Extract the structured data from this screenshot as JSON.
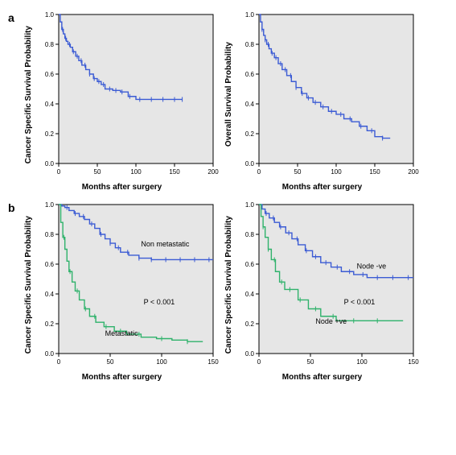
{
  "labels": {
    "row_a": "a",
    "row_b": "b",
    "xlab": "Months after surgery",
    "ylab_css": "Cancer Specific Survival Probability",
    "ylab_os": "Overall Survival Probability"
  },
  "style": {
    "plot_bg": "#e6e6e6",
    "axis_color": "#000000",
    "line_color_primary": "#3b5bd4",
    "line_color_secondary": "#2fb26b",
    "line_width": 1.4,
    "tick_fontsize": 8,
    "label_fontsize": 10,
    "row_label_fontsize": 14,
    "pvalue_fontsize": 9,
    "panel_border": "#000000"
  },
  "panels": {
    "a_left": {
      "ylab_key": "ylab_css",
      "xlim": [
        0,
        200
      ],
      "xtick_step": 50,
      "ylim": [
        0,
        1.0
      ],
      "ytick_step": 0.2,
      "series": [
        {
          "color_key": "line_color_primary",
          "points": [
            [
              0,
              1.0
            ],
            [
              2,
              0.95
            ],
            [
              4,
              0.9
            ],
            [
              6,
              0.87
            ],
            [
              8,
              0.84
            ],
            [
              10,
              0.82
            ],
            [
              12,
              0.8
            ],
            [
              15,
              0.78
            ],
            [
              18,
              0.75
            ],
            [
              22,
              0.72
            ],
            [
              26,
              0.69
            ],
            [
              30,
              0.66
            ],
            [
              35,
              0.63
            ],
            [
              40,
              0.6
            ],
            [
              45,
              0.57
            ],
            [
              50,
              0.55
            ],
            [
              55,
              0.53
            ],
            [
              60,
              0.5
            ],
            [
              70,
              0.49
            ],
            [
              80,
              0.48
            ],
            [
              90,
              0.45
            ],
            [
              100,
              0.43
            ],
            [
              110,
              0.43
            ],
            [
              125,
              0.43
            ],
            [
              140,
              0.43
            ],
            [
              155,
              0.43
            ],
            [
              160,
              0.43
            ]
          ],
          "censor_x": [
            5,
            9,
            14,
            19,
            24,
            29,
            34,
            40,
            46,
            52,
            58,
            66,
            74,
            82,
            92,
            105,
            120,
            135,
            150,
            160
          ]
        }
      ]
    },
    "a_right": {
      "ylab_key": "ylab_os",
      "xlim": [
        0,
        200
      ],
      "xtick_step": 50,
      "ylim": [
        0,
        1.0
      ],
      "ytick_step": 0.2,
      "series": [
        {
          "color_key": "line_color_primary",
          "points": [
            [
              0,
              1.0
            ],
            [
              2,
              0.95
            ],
            [
              4,
              0.9
            ],
            [
              6,
              0.86
            ],
            [
              8,
              0.83
            ],
            [
              10,
              0.8
            ],
            [
              13,
              0.77
            ],
            [
              16,
              0.74
            ],
            [
              20,
              0.71
            ],
            [
              25,
              0.67
            ],
            [
              30,
              0.63
            ],
            [
              36,
              0.59
            ],
            [
              42,
              0.55
            ],
            [
              48,
              0.51
            ],
            [
              55,
              0.47
            ],
            [
              62,
              0.44
            ],
            [
              70,
              0.41
            ],
            [
              80,
              0.38
            ],
            [
              90,
              0.35
            ],
            [
              100,
              0.33
            ],
            [
              110,
              0.3
            ],
            [
              120,
              0.28
            ],
            [
              130,
              0.25
            ],
            [
              140,
              0.22
            ],
            [
              150,
              0.18
            ],
            [
              160,
              0.17
            ],
            [
              170,
              0.17
            ]
          ],
          "censor_x": [
            4,
            8,
            12,
            17,
            22,
            28,
            34,
            41,
            48,
            56,
            64,
            73,
            83,
            94,
            106,
            118,
            132,
            146,
            160
          ]
        }
      ]
    },
    "b_left": {
      "ylab_key": "ylab_css",
      "pvalue": "P < 0.001",
      "xlim": [
        0,
        150
      ],
      "xtick_step": 50,
      "ylim": [
        0,
        1.0
      ],
      "ytick_step": 0.2,
      "series": [
        {
          "color_key": "line_color_primary",
          "label": "Non metastatic",
          "label_xy": [
            80,
            0.72
          ],
          "points": [
            [
              0,
              1.0
            ],
            [
              3,
              0.99
            ],
            [
              6,
              0.98
            ],
            [
              10,
              0.96
            ],
            [
              15,
              0.94
            ],
            [
              20,
              0.92
            ],
            [
              25,
              0.9
            ],
            [
              30,
              0.87
            ],
            [
              35,
              0.84
            ],
            [
              40,
              0.8
            ],
            [
              45,
              0.77
            ],
            [
              50,
              0.74
            ],
            [
              55,
              0.71
            ],
            [
              60,
              0.68
            ],
            [
              68,
              0.66
            ],
            [
              78,
              0.64
            ],
            [
              90,
              0.63
            ],
            [
              105,
              0.63
            ],
            [
              120,
              0.63
            ],
            [
              135,
              0.63
            ],
            [
              150,
              0.63
            ]
          ],
          "censor_x": [
            8,
            16,
            24,
            32,
            41,
            50,
            58,
            67,
            78,
            90,
            104,
            118,
            132,
            146
          ]
        },
        {
          "color_key": "line_color_secondary",
          "label": "Metastatic",
          "label_xy": [
            45,
            0.12
          ],
          "points": [
            [
              0,
              1.0
            ],
            [
              2,
              0.88
            ],
            [
              4,
              0.78
            ],
            [
              6,
              0.7
            ],
            [
              8,
              0.62
            ],
            [
              10,
              0.55
            ],
            [
              13,
              0.48
            ],
            [
              16,
              0.42
            ],
            [
              20,
              0.36
            ],
            [
              25,
              0.3
            ],
            [
              30,
              0.25
            ],
            [
              36,
              0.21
            ],
            [
              44,
              0.18
            ],
            [
              54,
              0.15
            ],
            [
              66,
              0.13
            ],
            [
              80,
              0.11
            ],
            [
              95,
              0.1
            ],
            [
              110,
              0.09
            ],
            [
              125,
              0.08
            ],
            [
              140,
              0.08
            ]
          ],
          "censor_x": [
            5,
            11,
            18,
            26,
            35,
            46,
            60,
            78,
            100,
            125
          ]
        }
      ]
    },
    "b_right": {
      "ylab_key": "ylab_css",
      "pvalue": "P < 0.001",
      "xlim": [
        0,
        150
      ],
      "xtick_step": 50,
      "ylim": [
        0,
        1.0
      ],
      "ytick_step": 0.2,
      "series": [
        {
          "color_key": "line_color_primary",
          "label": "Node -ve",
          "label_xy": [
            95,
            0.57
          ],
          "points": [
            [
              0,
              1.0
            ],
            [
              3,
              0.97
            ],
            [
              6,
              0.94
            ],
            [
              10,
              0.91
            ],
            [
              15,
              0.88
            ],
            [
              20,
              0.85
            ],
            [
              26,
              0.81
            ],
            [
              32,
              0.77
            ],
            [
              38,
              0.73
            ],
            [
              45,
              0.69
            ],
            [
              52,
              0.65
            ],
            [
              60,
              0.61
            ],
            [
              70,
              0.58
            ],
            [
              80,
              0.55
            ],
            [
              92,
              0.53
            ],
            [
              105,
              0.51
            ],
            [
              120,
              0.51
            ],
            [
              135,
              0.51
            ],
            [
              150,
              0.51
            ]
          ],
          "censor_x": [
            7,
            14,
            21,
            29,
            37,
            46,
            55,
            65,
            76,
            88,
            101,
            115,
            130,
            145
          ]
        },
        {
          "color_key": "line_color_secondary",
          "label": "Node +ve",
          "label_xy": [
            55,
            0.2
          ],
          "points": [
            [
              0,
              1.0
            ],
            [
              2,
              0.92
            ],
            [
              4,
              0.85
            ],
            [
              6,
              0.78
            ],
            [
              9,
              0.7
            ],
            [
              12,
              0.63
            ],
            [
              16,
              0.55
            ],
            [
              20,
              0.48
            ],
            [
              25,
              0.43
            ],
            [
              30,
              0.43
            ],
            [
              38,
              0.36
            ],
            [
              48,
              0.3
            ],
            [
              60,
              0.25
            ],
            [
              75,
              0.22
            ],
            [
              92,
              0.22
            ],
            [
              110,
              0.22
            ],
            [
              125,
              0.22
            ],
            [
              140,
              0.22
            ]
          ],
          "censor_x": [
            4,
            9,
            15,
            22,
            30,
            40,
            55,
            72,
            92,
            115
          ]
        }
      ]
    }
  }
}
